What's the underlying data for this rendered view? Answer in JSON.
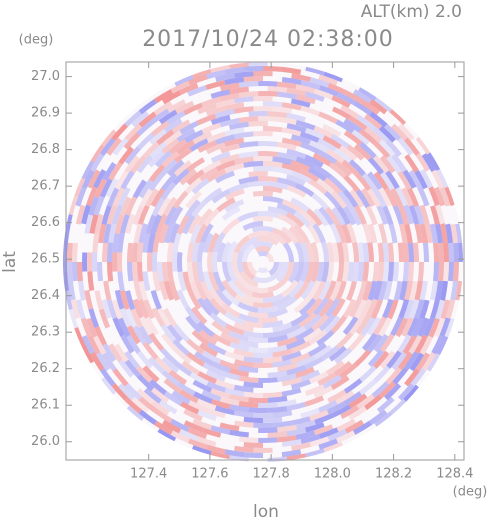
{
  "chart_data": {
    "type": "radar-ppi",
    "title": "2017/10/24 02:38:00",
    "subtitle": "ALT(km) 2.0",
    "x_label": "lon",
    "y_label": "lat",
    "x_unit": "(deg)",
    "y_unit": "(deg)",
    "xlim": [
      127.13,
      128.43
    ],
    "ylim": [
      25.95,
      27.04
    ],
    "xticks": [
      127.4,
      127.6,
      127.8,
      {
        "value": 128,
        "label": "128.0"
      },
      128.2,
      128.4
    ],
    "yticks": [
      {
        "value": 26,
        "label": "26.0"
      },
      26.1,
      26.2,
      26.3,
      26.4,
      26.5,
      26.6,
      26.7,
      26.8,
      26.9,
      {
        "value": 27,
        "label": "27.0"
      }
    ]
  }
}
